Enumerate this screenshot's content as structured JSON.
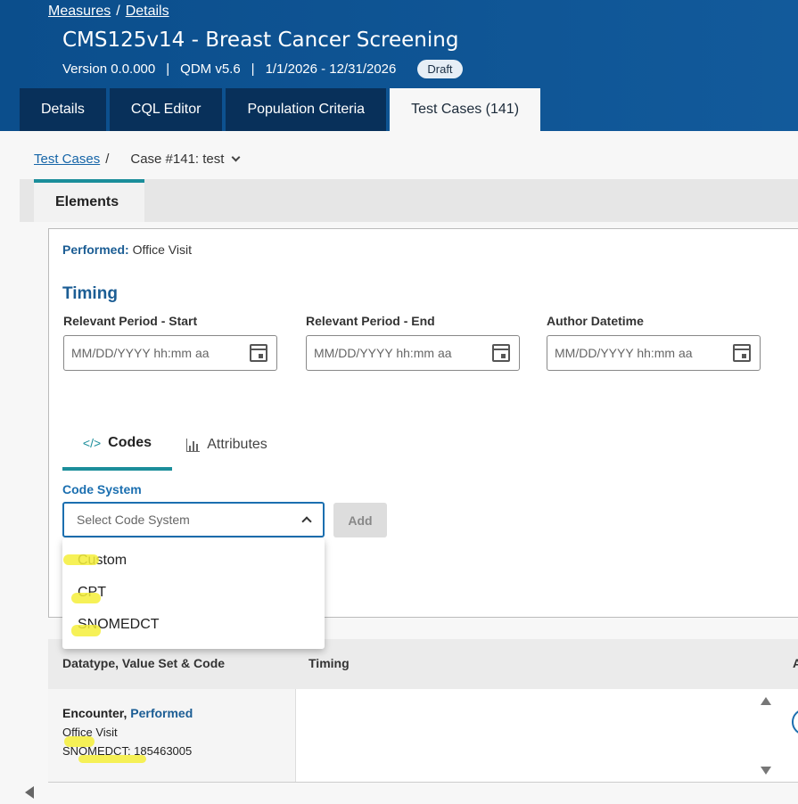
{
  "header": {
    "breadcrumbs": [
      "Measures",
      "Details"
    ],
    "breadcrumb_sep": "/",
    "title": "CMS125v14 - Breast Cancer Screening",
    "version": "Version 0.0.000",
    "qdm": "QDM v5.6",
    "period": "1/1/2026 - 12/31/2026",
    "separator": "|",
    "status_badge": "Draft",
    "tabs": [
      "Details",
      "CQL Editor",
      "Population Criteria",
      "Test Cases (141)"
    ],
    "active_tab": "Test Cases (141)"
  },
  "sub_breadcrumb": {
    "link": "Test Cases",
    "sep": "/",
    "case": "Case #141: test"
  },
  "elements_tab": "Elements",
  "element": {
    "performed_label": "Performed:",
    "performed_value": "Office Visit",
    "timing_heading": "Timing",
    "fields": [
      {
        "label": "Relevant Period - Start",
        "placeholder": "MM/DD/YYYY hh:mm aa"
      },
      {
        "label": "Relevant Period - End",
        "placeholder": "MM/DD/YYYY hh:mm aa"
      },
      {
        "label": "Author Datetime",
        "placeholder": "MM/DD/YYYY hh:mm aa"
      }
    ],
    "subtabs": [
      "Codes",
      "Attributes"
    ],
    "active_subtab": "Codes",
    "code_system_label": "Code System",
    "code_system_placeholder": "Select Code System",
    "add_button": "Add",
    "code_system_options": [
      "Custom",
      "CPT",
      "SNOMEDCT"
    ]
  },
  "table": {
    "headers": [
      "Datatype, Value Set & Code",
      "Timing",
      "A"
    ],
    "rows": [
      {
        "datatype": "Encounter,",
        "datatype_kind": "Performed",
        "value_set": "Office Visit",
        "code": "SNOMEDCT: 185463005"
      }
    ]
  },
  "colors": {
    "header_bg": "#0b4e8c",
    "tab_bg": "#08305a",
    "accent_teal": "#1b8e9b",
    "link_blue": "#1b6fb0",
    "highlight": "#f5ef3a"
  }
}
